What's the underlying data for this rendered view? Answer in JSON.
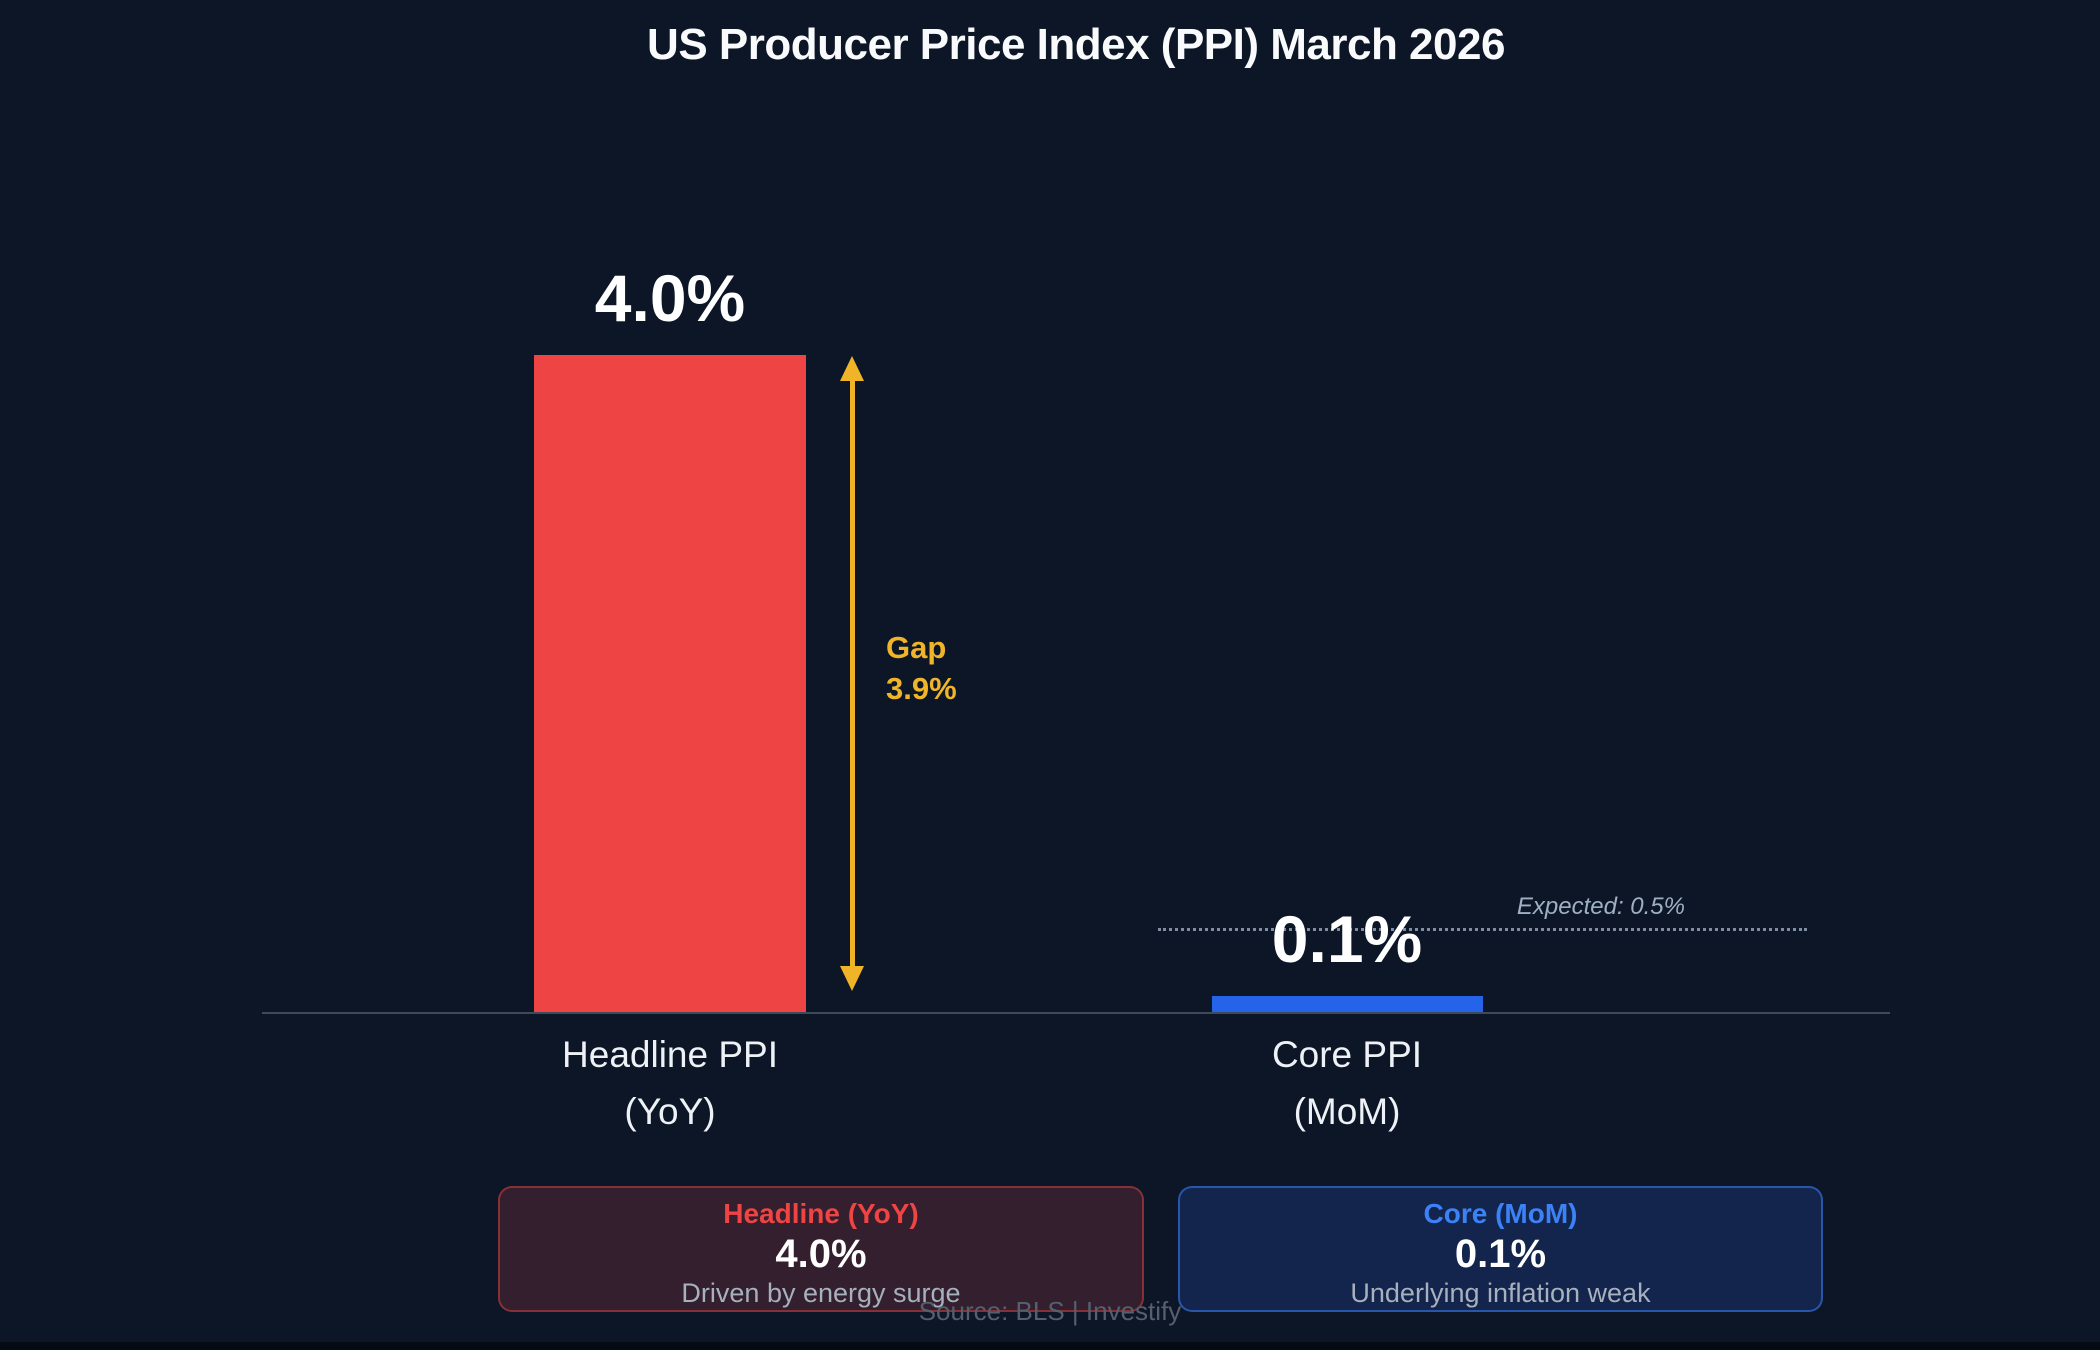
{
  "title": "US Producer Price Index (PPI) March 2026",
  "chart_data": {
    "type": "bar",
    "title": "US Producer Price Index (PPI) March 2026",
    "categories": [
      "Headline PPI (YoY)",
      "Core PPI (MoM)"
    ],
    "values": [
      4.0,
      0.1
    ],
    "value_labels": [
      "4.0%",
      "0.1%"
    ],
    "bar_colors": [
      "#ef4444",
      "#2563eb"
    ],
    "xlabel": "",
    "ylabel": "",
    "ylim": [
      0,
      4.6
    ],
    "grid": false,
    "legend": false,
    "annotations": [
      {
        "type": "double-arrow",
        "label": "Gap 3.9%",
        "value": 3.9,
        "color": "#f0b429"
      },
      {
        "type": "reference-line",
        "label": "Expected: 0.5%",
        "value": 0.5,
        "style": "dotted",
        "color": "#94a3b8"
      }
    ],
    "source": "Source: BLS | Investify"
  },
  "colors": {
    "background": "#0c1626",
    "headline_bar": "#ef4444",
    "core_bar": "#2563eb",
    "gap_accent": "#f0b429",
    "expected_gray": "#9fb0c4",
    "card_headline_bg": "#331f2d",
    "card_core_bg": "#13244d"
  },
  "bars": [
    {
      "label_line1": "Headline PPI",
      "label_line2": "(YoY)",
      "value_label": "4.0%",
      "color": "#ef4444"
    },
    {
      "label_line1": "Core PPI",
      "label_line2": "(MoM)",
      "value_label": "0.1%",
      "color": "#2563eb"
    }
  ],
  "gap_annotation": {
    "line1": "Gap",
    "line2": "3.9%"
  },
  "expected_label": "Expected: 0.5%",
  "cards": [
    {
      "title": "Headline (YoY)",
      "value": "4.0%",
      "description": "Driven by energy surge"
    },
    {
      "title": "Core (MoM)",
      "value": "0.1%",
      "description": "Underlying inflation weak"
    }
  ],
  "source": "Source: BLS | Investify"
}
